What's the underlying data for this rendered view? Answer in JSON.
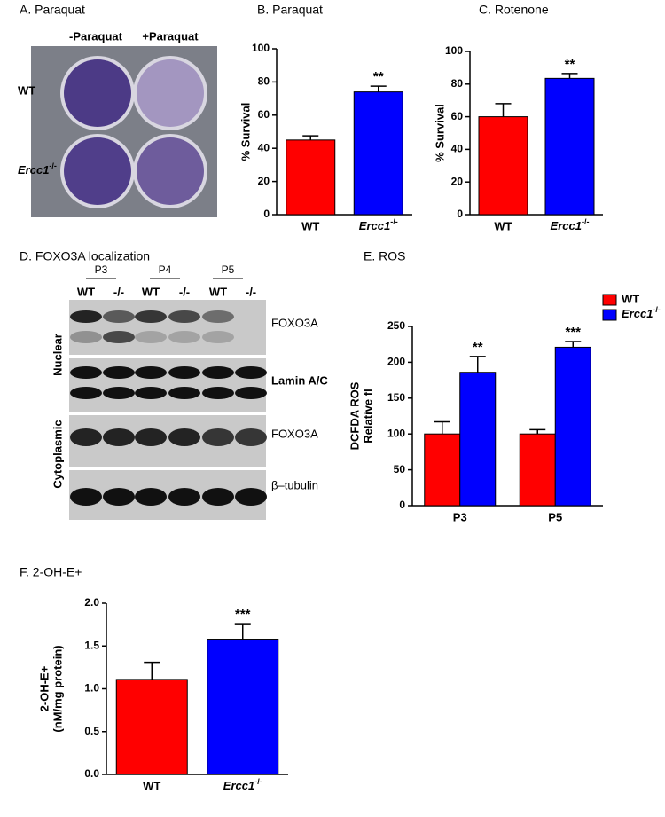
{
  "panel_a": {
    "title": "A. Paraquat",
    "columns": [
      "-Paraquat",
      "+Paraquat"
    ],
    "rows": [
      "WT",
      "Ercc1-/-"
    ]
  },
  "panel_d": {
    "title": "D. FOXO3A localization",
    "passages": [
      "P3",
      "P4",
      "P5"
    ],
    "lanes": [
      "WT",
      "-/-",
      "WT",
      "-/-",
      "WT",
      "-/-"
    ],
    "fractions": [
      "Nuclear",
      "Cytoplasmic"
    ],
    "bands": [
      "FOXO3A",
      "Lamin A/C",
      "FOXO3A",
      "β–tubulin"
    ]
  },
  "chart_data": [
    {
      "type": "bar",
      "title": "B.  Paraquat",
      "ylabel": [
        "% Survival"
      ],
      "categories": [
        "WT",
        "Ercc1-/-"
      ],
      "values": [
        45,
        74
      ],
      "errors": [
        2.5,
        3.5
      ],
      "colors": [
        "#ff0000",
        "#0000ff"
      ],
      "significance": [
        null,
        "**"
      ],
      "ylim": [
        0,
        100
      ],
      "yticks": [
        0,
        20,
        40,
        60,
        80,
        100
      ]
    },
    {
      "type": "bar",
      "title": "C.  Rotenone",
      "ylabel": [
        "% Survival"
      ],
      "categories": [
        "WT",
        "Ercc1-/-"
      ],
      "values": [
        60,
        83.5
      ],
      "errors": [
        8,
        3
      ],
      "colors": [
        "#ff0000",
        "#0000ff"
      ],
      "significance": [
        null,
        "**"
      ],
      "ylim": [
        0,
        100
      ],
      "yticks": [
        0,
        20,
        40,
        60,
        80,
        100
      ]
    },
    {
      "type": "grouped_bar",
      "title": "E.  ROS",
      "ylabel": [
        "DCFDA ROS",
        "Relative fl"
      ],
      "categories": [
        "P3",
        "P5"
      ],
      "series": [
        {
          "name": "WT",
          "color": "#ff0000",
          "values": [
            100,
            100
          ],
          "errors": [
            17,
            6
          ],
          "significance": [
            null,
            null
          ]
        },
        {
          "name": "Ercc1-/-",
          "color": "#0000ff",
          "values": [
            186,
            221
          ],
          "errors": [
            22,
            8
          ],
          "significance": [
            "**",
            "***"
          ]
        }
      ],
      "legend": "upper right",
      "ylim": [
        0,
        250
      ],
      "yticks": [
        0,
        50,
        100,
        150,
        200,
        250
      ]
    },
    {
      "type": "bar",
      "title": "F.  2-OH-E+",
      "ylabel": [
        "2-OH-E+",
        "(nM/mg protein)"
      ],
      "categories": [
        "WT",
        "Ercc1-/-"
      ],
      "values": [
        1.11,
        1.58
      ],
      "errors": [
        0.2,
        0.18
      ],
      "colors": [
        "#ff0000",
        "#0000ff"
      ],
      "significance": [
        null,
        "***"
      ],
      "ylim": [
        0,
        2
      ],
      "yticks": [
        {
          "value": 0,
          "label": "0.0"
        },
        {
          "value": 0.5,
          "label": "0.5"
        },
        {
          "value": 1,
          "label": "1.0"
        },
        {
          "value": 1.5,
          "label": "1.5"
        },
        {
          "value": 2,
          "label": "2.0"
        }
      ]
    }
  ]
}
